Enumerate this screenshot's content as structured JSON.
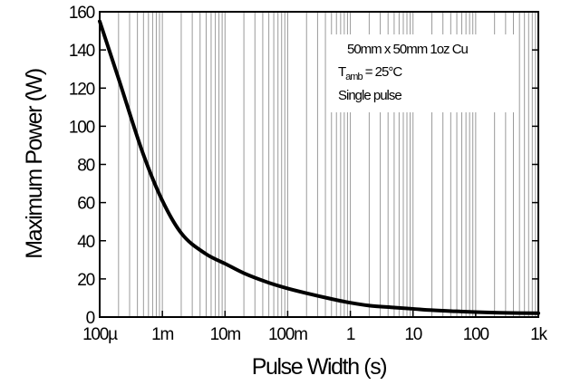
{
  "chart_data": {
    "type": "line",
    "title": "",
    "xlabel": "Pulse Width (s)",
    "ylabel": "Maximum Power (W)",
    "x_scale": "log",
    "xlim": [
      0.0001,
      1000
    ],
    "ylim": [
      0,
      160
    ],
    "grid": true,
    "x_tick_values": [
      0.0001,
      0.001,
      0.01,
      0.1,
      1,
      10,
      100,
      1000
    ],
    "x_tick_labels": [
      "100µ",
      "1m",
      "10m",
      "100m",
      "1",
      "10",
      "100",
      "1k"
    ],
    "y_tick_values": [
      0,
      20,
      40,
      60,
      80,
      100,
      120,
      140,
      160
    ],
    "y_tick_labels": [
      "0",
      "20",
      "40",
      "60",
      "80",
      "100",
      "120",
      "140",
      "160"
    ],
    "annotation": {
      "line1": "50mm x 50mm 1oz Cu",
      "line2_main": "T",
      "line2_sub": "amb",
      "line2_rest": " = 25°C",
      "line3": "Single pulse",
      "placement": "top-right"
    },
    "series": [
      {
        "color": "#000000",
        "x": [
          0.0001,
          0.0002,
          0.0005,
          0.001,
          0.002,
          0.005,
          0.01,
          0.02,
          0.05,
          0.1,
          0.2,
          0.5,
          1,
          2,
          5,
          10,
          20,
          50,
          100,
          200,
          500,
          1000
        ],
        "y": [
          155,
          125,
          85,
          61,
          44,
          33,
          28,
          23,
          18,
          15,
          12.5,
          9.5,
          7.5,
          6,
          5,
          4.3,
          3.6,
          3,
          2.6,
          2.3,
          2.1,
          2
        ]
      }
    ]
  }
}
